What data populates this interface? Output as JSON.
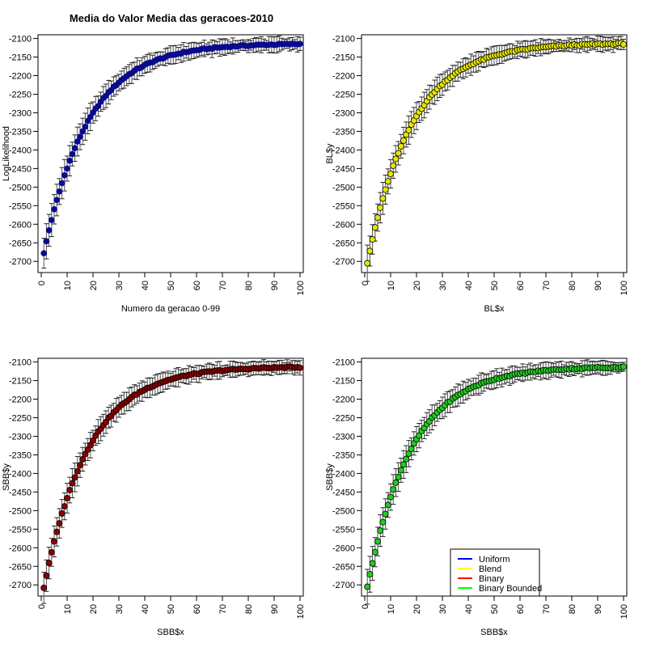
{
  "figure": {
    "title": "Media do Valor Media das geracoes-2010"
  },
  "chart_data": [
    {
      "type": "scatter",
      "panel": "top-left",
      "title": "Media do Valor Media das geracoes-2010",
      "xlabel": "Numero da geracao 0-99",
      "ylabel": "LogLikelihood",
      "xlim": [
        0,
        100
      ],
      "ylim": [
        -2730,
        -2090
      ],
      "xticks": [
        0,
        10,
        20,
        30,
        40,
        50,
        60,
        70,
        80,
        90,
        100
      ],
      "yticks": [
        -2700,
        -2650,
        -2600,
        -2550,
        -2500,
        -2450,
        -2400,
        -2350,
        -2300,
        -2250,
        -2200,
        -2150,
        -2100
      ],
      "point_color": "#0a0a8c",
      "series": [
        {
          "name": "Uniform",
          "y_start": -2678,
          "y_end": -2113
        }
      ],
      "error_bar": "±",
      "x": "1..100"
    },
    {
      "type": "scatter",
      "panel": "top-right",
      "xlabel": "BL$x",
      "ylabel": "BL$y",
      "xlim": [
        0,
        100
      ],
      "ylim": [
        -2730,
        -2090
      ],
      "xticks": [
        0,
        10,
        20,
        30,
        40,
        50,
        60,
        70,
        80,
        90,
        100
      ],
      "yticks": [
        -2700,
        -2650,
        -2600,
        -2550,
        -2500,
        -2450,
        -2400,
        -2350,
        -2300,
        -2250,
        -2200,
        -2150,
        -2100
      ],
      "point_color": "#e6e600",
      "series": [
        {
          "name": "Blend",
          "y_start": -2705,
          "y_end": -2112
        }
      ],
      "x": "1..100"
    },
    {
      "type": "scatter",
      "panel": "bottom-left",
      "xlabel": "SBB$x",
      "ylabel": "SBB$y",
      "xlim": [
        0,
        100
      ],
      "ylim": [
        -2730,
        -2090
      ],
      "xticks": [
        0,
        10,
        20,
        30,
        40,
        50,
        60,
        70,
        80,
        90,
        100
      ],
      "yticks": [
        -2700,
        -2650,
        -2600,
        -2550,
        -2500,
        -2450,
        -2400,
        -2350,
        -2300,
        -2250,
        -2200,
        -2150,
        -2100
      ],
      "point_color": "#8b0000",
      "series": [
        {
          "name": "Binary",
          "y_start": -2708,
          "y_end": -2112
        }
      ],
      "x": "1..100"
    },
    {
      "type": "scatter",
      "panel": "bottom-right",
      "xlabel": "SBB$x",
      "ylabel": "SBB$y",
      "xlim": [
        0,
        100
      ],
      "ylim": [
        -2730,
        -2090
      ],
      "xticks": [
        0,
        10,
        20,
        30,
        40,
        50,
        60,
        70,
        80,
        90,
        100
      ],
      "yticks": [
        -2700,
        -2650,
        -2600,
        -2550,
        -2500,
        -2450,
        -2400,
        -2350,
        -2300,
        -2250,
        -2200,
        -2150,
        -2100
      ],
      "point_color": "#22cc22",
      "series": [
        {
          "name": "Binary Bounded",
          "y_start": -2705,
          "y_end": -2112
        }
      ],
      "x": "1..100",
      "legend": {
        "position": "bottom-right",
        "entries": [
          {
            "label": "Uniform",
            "color": "#0000ff"
          },
          {
            "label": "Blend",
            "color": "#ffff00"
          },
          {
            "label": "Binary",
            "color": "#ff0000"
          },
          {
            "label": "Binary Bounded",
            "color": "#00ff00"
          }
        ]
      }
    }
  ]
}
